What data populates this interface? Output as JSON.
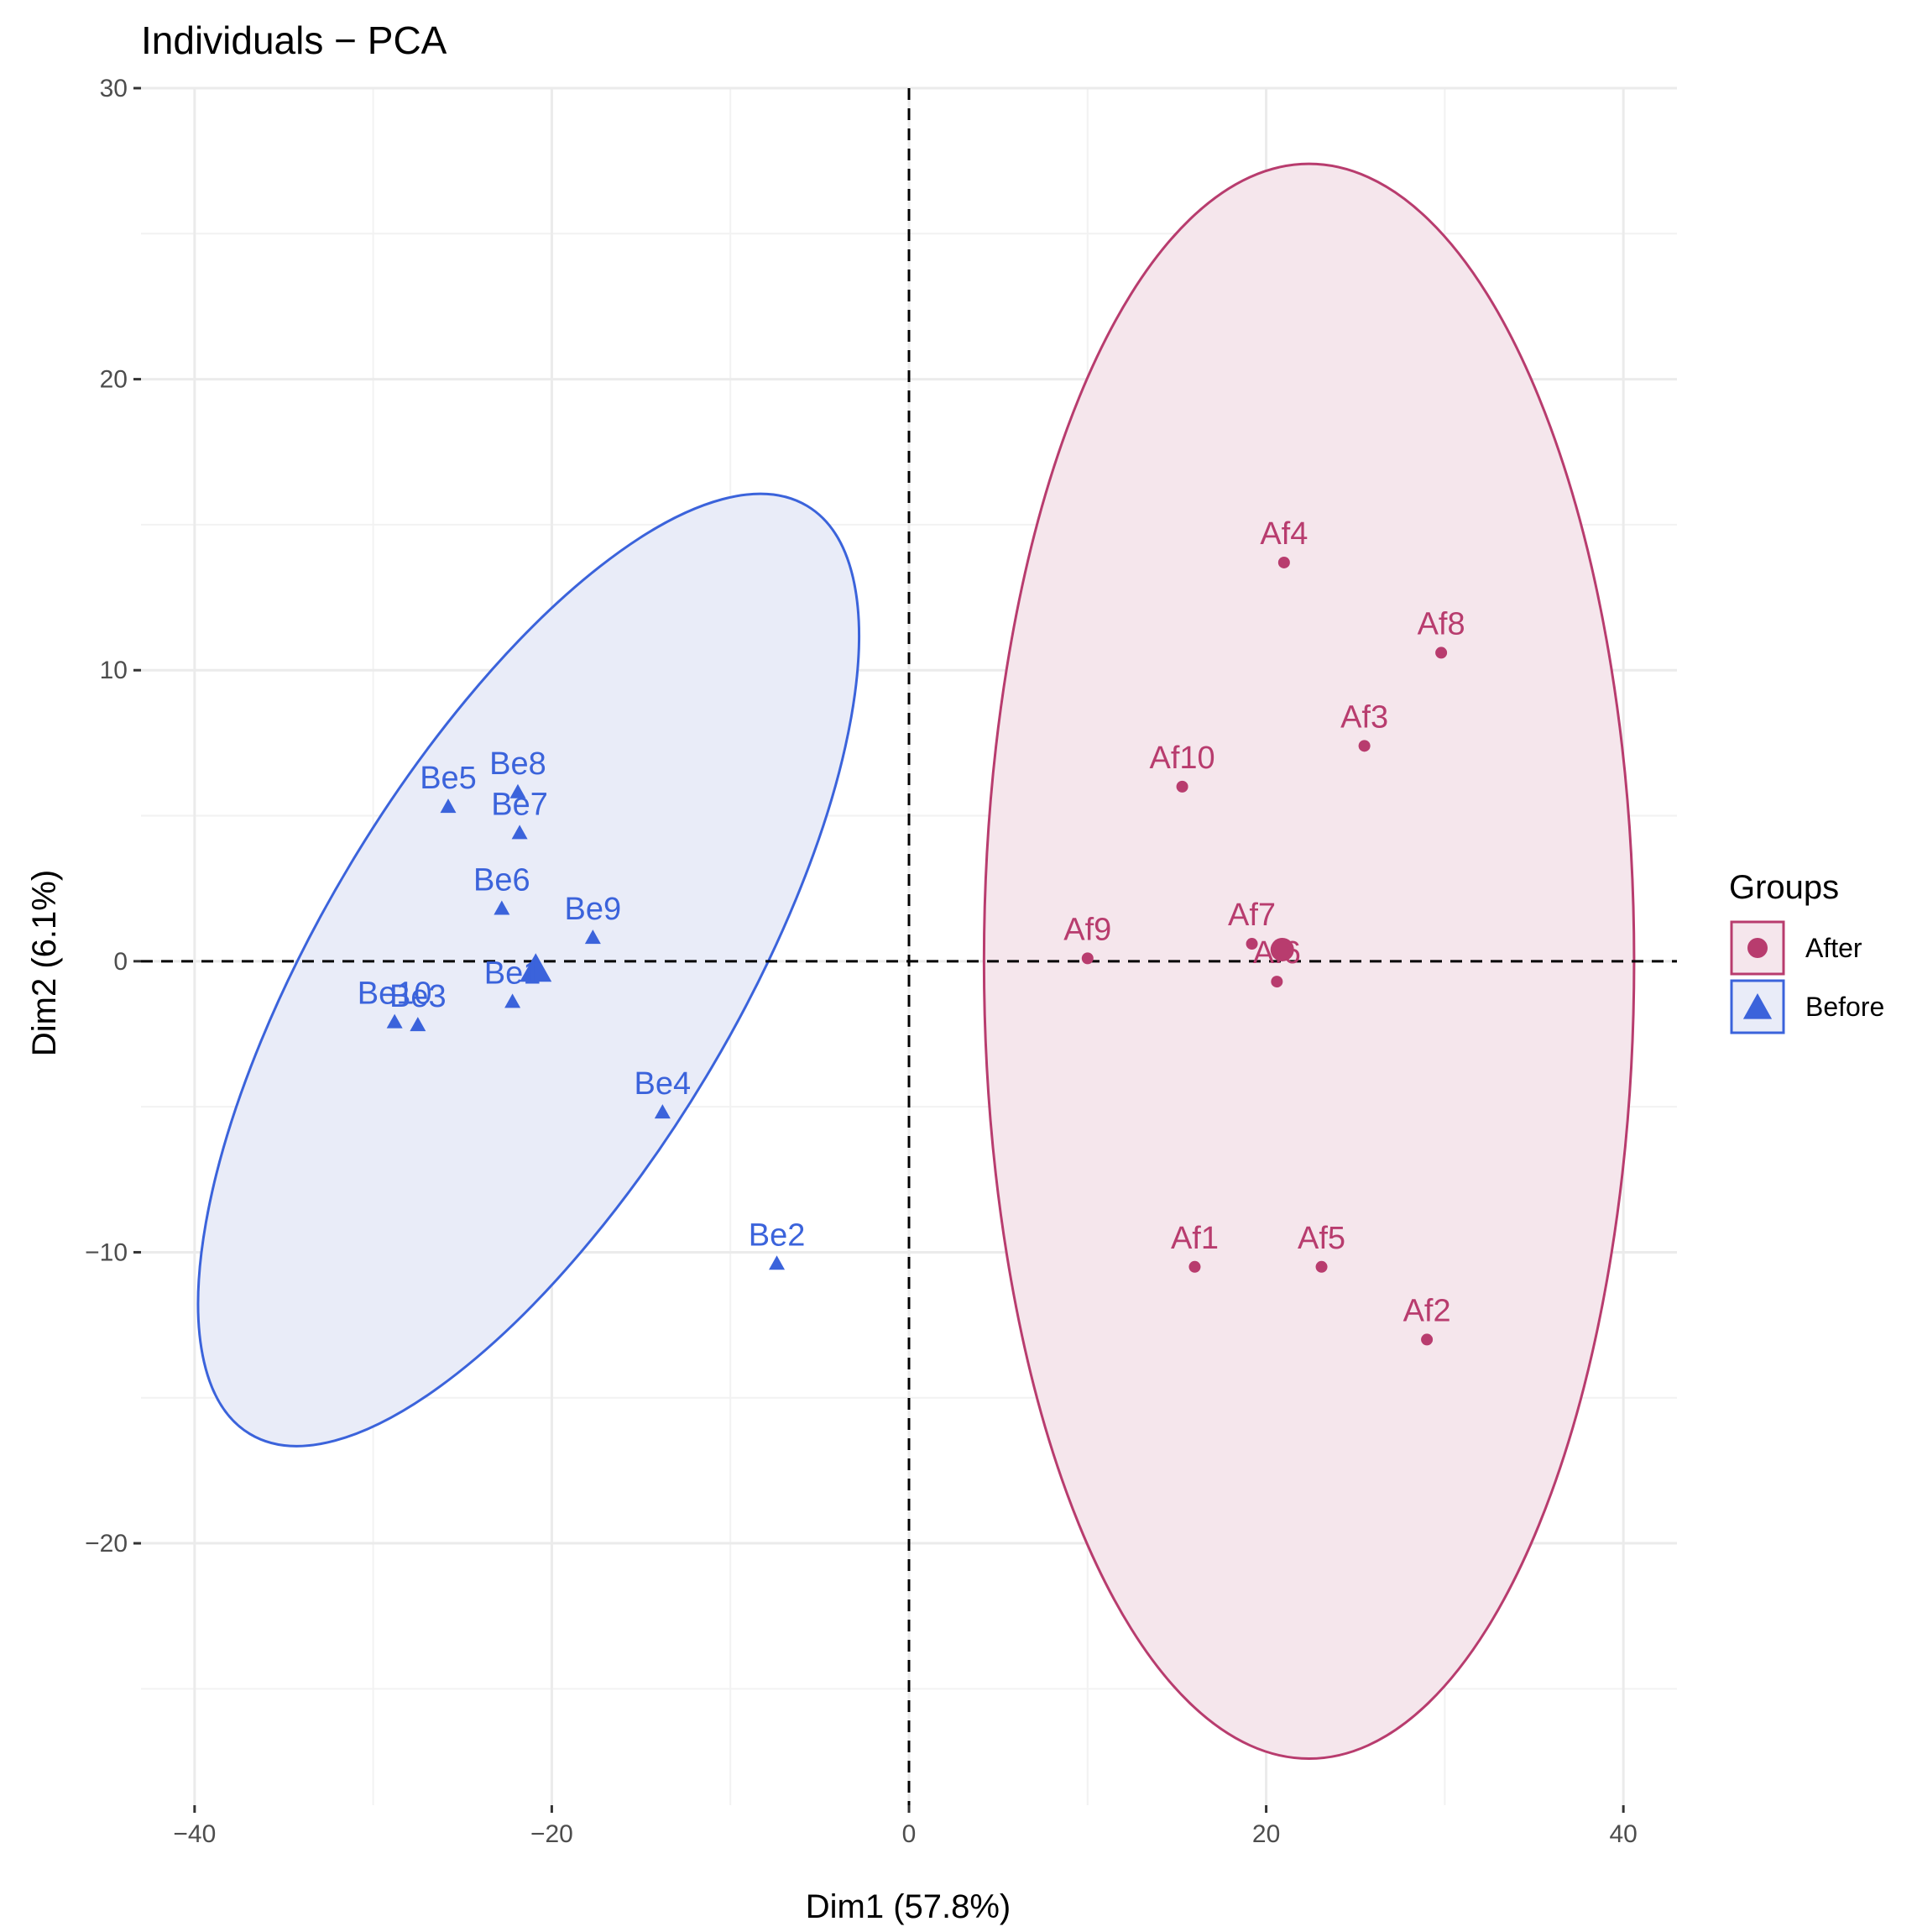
{
  "chart_data": {
    "type": "scatter",
    "title": "Individuals − PCA",
    "xlabel": "Dim1 (57.8%)",
    "ylabel": "Dim2 (6.1%)",
    "xlim": [
      -43,
      43
    ],
    "ylim": [
      -29,
      30
    ],
    "x_ticks": [
      -40,
      -20,
      0,
      20,
      40
    ],
    "x_tick_labels": [
      "−40",
      "−20",
      "0",
      "20",
      "40"
    ],
    "y_ticks": [
      -20,
      -10,
      0,
      10,
      20,
      30
    ],
    "y_tick_labels": [
      "−20",
      "−10",
      "0",
      "10",
      "20",
      "30"
    ],
    "grid": true,
    "reference_lines": [
      {
        "axis": "x",
        "value": 0,
        "style": "dashed"
      },
      {
        "axis": "y",
        "value": 0,
        "style": "dashed"
      }
    ],
    "legend": {
      "title": "Groups",
      "placement": "right"
    },
    "series": [
      {
        "name": "After",
        "marker": "circle",
        "color": "#B83C6E",
        "fill": "#F5E6EC",
        "ellipse": {
          "cx": 22.4,
          "cy": 0.0,
          "rx": 18.2,
          "ry": 27.4,
          "angle": 0
        },
        "centroid": {
          "x": 20.9,
          "y": 0.4
        },
        "points": [
          {
            "label": "Af1",
            "x": 16.0,
            "y": -10.5
          },
          {
            "label": "Af2",
            "x": 29.0,
            "y": -13.0
          },
          {
            "label": "Af3",
            "x": 25.5,
            "y": 7.4
          },
          {
            "label": "Af4",
            "x": 21.0,
            "y": 13.7
          },
          {
            "label": "Af5",
            "x": 23.1,
            "y": -10.5
          },
          {
            "label": "Af6",
            "x": 20.6,
            "y": -0.7
          },
          {
            "label": "Af7",
            "x": 19.2,
            "y": 0.6
          },
          {
            "label": "Af8",
            "x": 29.8,
            "y": 10.6
          },
          {
            "label": "Af9",
            "x": 10.0,
            "y": 0.1
          },
          {
            "label": "Af10",
            "x": 15.3,
            "y": 6.0
          }
        ]
      },
      {
        "name": "Before",
        "marker": "triangle",
        "color": "#3B63DB",
        "fill": "#E9ECF8",
        "ellipse": {
          "cx": -21.3,
          "cy": -0.3,
          "rx": 11.6,
          "ry": 18.6,
          "angle": 31
        },
        "centroid": {
          "x": -20.9,
          "y": -0.3
        },
        "points": [
          {
            "label": "Be1",
            "x": -22.2,
            "y": -1.4
          },
          {
            "label": "Be2",
            "x": -7.4,
            "y": -10.4
          },
          {
            "label": "Be3",
            "x": -27.5,
            "y": -2.2
          },
          {
            "label": "Be4",
            "x": -13.8,
            "y": -5.2
          },
          {
            "label": "Be5",
            "x": -25.8,
            "y": 5.3
          },
          {
            "label": "Be6",
            "x": -22.8,
            "y": 1.8
          },
          {
            "label": "Be7",
            "x": -21.8,
            "y": 4.4
          },
          {
            "label": "Be8",
            "x": -21.9,
            "y": 5.8
          },
          {
            "label": "Be9",
            "x": -17.7,
            "y": 0.8
          },
          {
            "label": "Be10",
            "x": -28.8,
            "y": -2.1
          }
        ]
      }
    ]
  }
}
